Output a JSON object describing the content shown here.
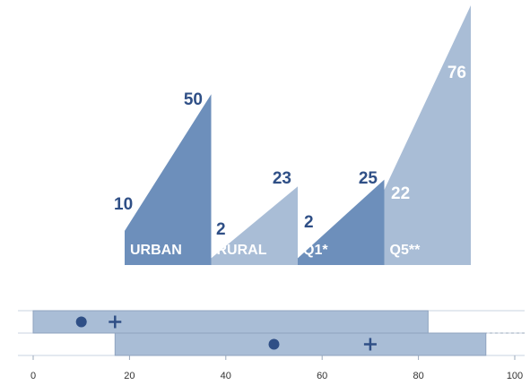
{
  "chart_data": [
    {
      "type": "area",
      "groups": [
        {
          "label": "URBAN",
          "start": 10,
          "end": 50,
          "color": "#6d8fbb",
          "start_style": "dark",
          "end_style": "dark"
        },
        {
          "label": "RURAL",
          "start": 2,
          "end": 23,
          "color": "#a9bdd6",
          "start_style": "dark",
          "end_style": "dark"
        },
        {
          "label": "Q1*",
          "start": 2,
          "end": 25,
          "color": "#6d8fbb",
          "start_style": "dark",
          "end_style": "dark"
        },
        {
          "label": "Q5**",
          "start": 22,
          "end": 76,
          "color": "#a9bdd6",
          "start_style": "light",
          "end_style": "light"
        }
      ],
      "ylim": [
        0,
        76
      ]
    },
    {
      "type": "bar",
      "orientation": "horizontal",
      "xlim": [
        0,
        100
      ],
      "x_ticks": [
        "0",
        "20",
        "40",
        "60",
        "80",
        "100"
      ],
      "bars": [
        {
          "start": 0,
          "end": 82,
          "dot": 10,
          "plus": 17
        },
        {
          "start": 17,
          "end": 94,
          "dot": 50,
          "plus": 70
        }
      ],
      "color": "#a9bdd6",
      "marker_color": "#2f4f86"
    }
  ]
}
